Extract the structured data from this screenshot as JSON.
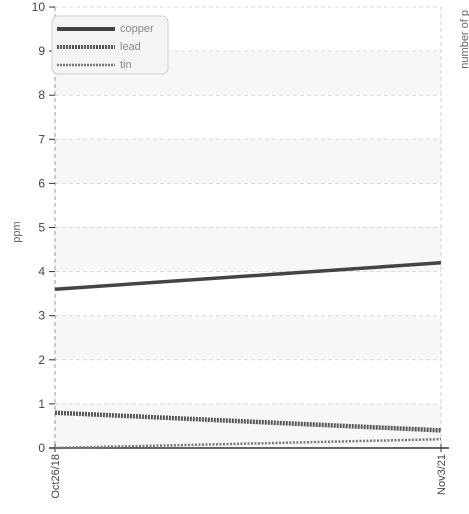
{
  "chart_data": {
    "type": "line",
    "title": "",
    "xlabel": "",
    "ylabel": "ppm",
    "y2label": "number of p",
    "ylim": [
      0,
      10
    ],
    "yticks": [
      "0",
      "1",
      "2",
      "3",
      "4",
      "5",
      "6",
      "7",
      "8",
      "9",
      "10"
    ],
    "categories": [
      "Oct26/18",
      "Nov3/21"
    ],
    "grid": true,
    "legend_position": "top-left",
    "series": [
      {
        "name": "copper",
        "values": [
          3.6,
          4.2
        ],
        "color": "#444444",
        "style": "solid"
      },
      {
        "name": "lead",
        "values": [
          0.8,
          0.4
        ],
        "color": "#555555",
        "style": "dotted-thick"
      },
      {
        "name": "tin",
        "values": [
          0.0,
          0.2
        ],
        "color": "#777777",
        "style": "dotted-thin"
      }
    ]
  }
}
